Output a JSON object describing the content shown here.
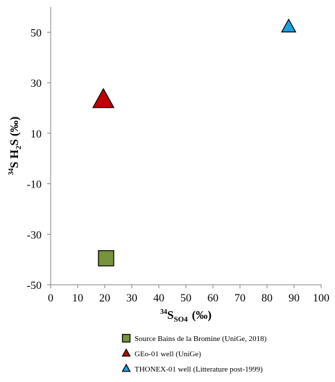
{
  "chart_data": {
    "type": "scatter",
    "title": "",
    "xlabel": {
      "prefix": "34",
      "main": "S",
      "sub": "SO4",
      "unit": "(‰)"
    },
    "ylabel": {
      "prefix": "34",
      "main": "S H",
      "sub": "2",
      "rest": "S (‰)"
    },
    "xlim": [
      0,
      100
    ],
    "ylim": [
      -50,
      60
    ],
    "xticks": [
      0,
      10,
      20,
      30,
      40,
      50,
      60,
      70,
      80,
      90,
      100
    ],
    "yticks": [
      -50,
      -30,
      -10,
      10,
      30,
      50
    ],
    "grid": false,
    "legend_position": "bottom",
    "series": [
      {
        "name": "Source Bains de la Bromine (UniGe, 2018)",
        "marker": "square",
        "color": "#77933c",
        "points": [
          [
            20.5,
            -39.5
          ]
        ]
      },
      {
        "name": "GEo-01 well (UniGe)",
        "marker": "triangle",
        "color": "#c00000",
        "points": [
          [
            19.5,
            23
          ]
        ]
      },
      {
        "name": "THONEX-01 well (Litterature post-1999)",
        "marker": "triangle",
        "color": "#1ba1e2",
        "points": [
          [
            88,
            52
          ]
        ]
      }
    ]
  }
}
